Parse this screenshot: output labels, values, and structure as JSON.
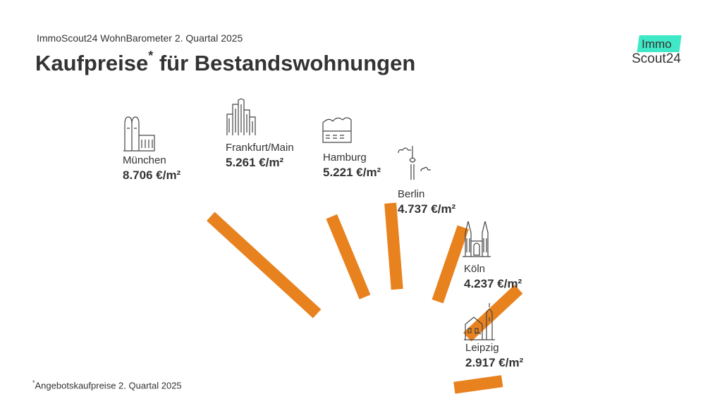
{
  "header": {
    "subtitle": "ImmoScout24 WohnBarometer 2. Quartal 2025",
    "title": "Kaufpreise",
    "title_star": "*",
    "title_rest": " für Bestandswohnungen"
  },
  "logo": {
    "line1": "Immo",
    "line2": "Scout24",
    "accent": "#3fe8c6"
  },
  "footnote": {
    "star": "*",
    "text": "Angebotskaufpreise 2. Quartal 2025"
  },
  "colors": {
    "bar": "#e8821e",
    "text": "#333333"
  },
  "chart_data": {
    "type": "bar",
    "title": "Kaufpreise* für Bestandswohnungen",
    "unit": "€/m²",
    "categories": [
      "München",
      "Frankfurt/Main",
      "Hamburg",
      "Berlin",
      "Köln",
      "Leipzig"
    ],
    "values": [
      8706,
      5261,
      5221,
      4737,
      4237,
      2917
    ],
    "labels": [
      "8.706 €/m²",
      "5.261 €/m²",
      "5.221 €/m²",
      "4.737 €/m²",
      "4.237 €/m²",
      "2.917 €/m²"
    ],
    "icons": [
      "frauenkirche-icon",
      "skyline-icon",
      "elbphilharmonie-icon",
      "tv-tower-icon",
      "cathedral-icon",
      "old-town-hall-icon"
    ]
  }
}
